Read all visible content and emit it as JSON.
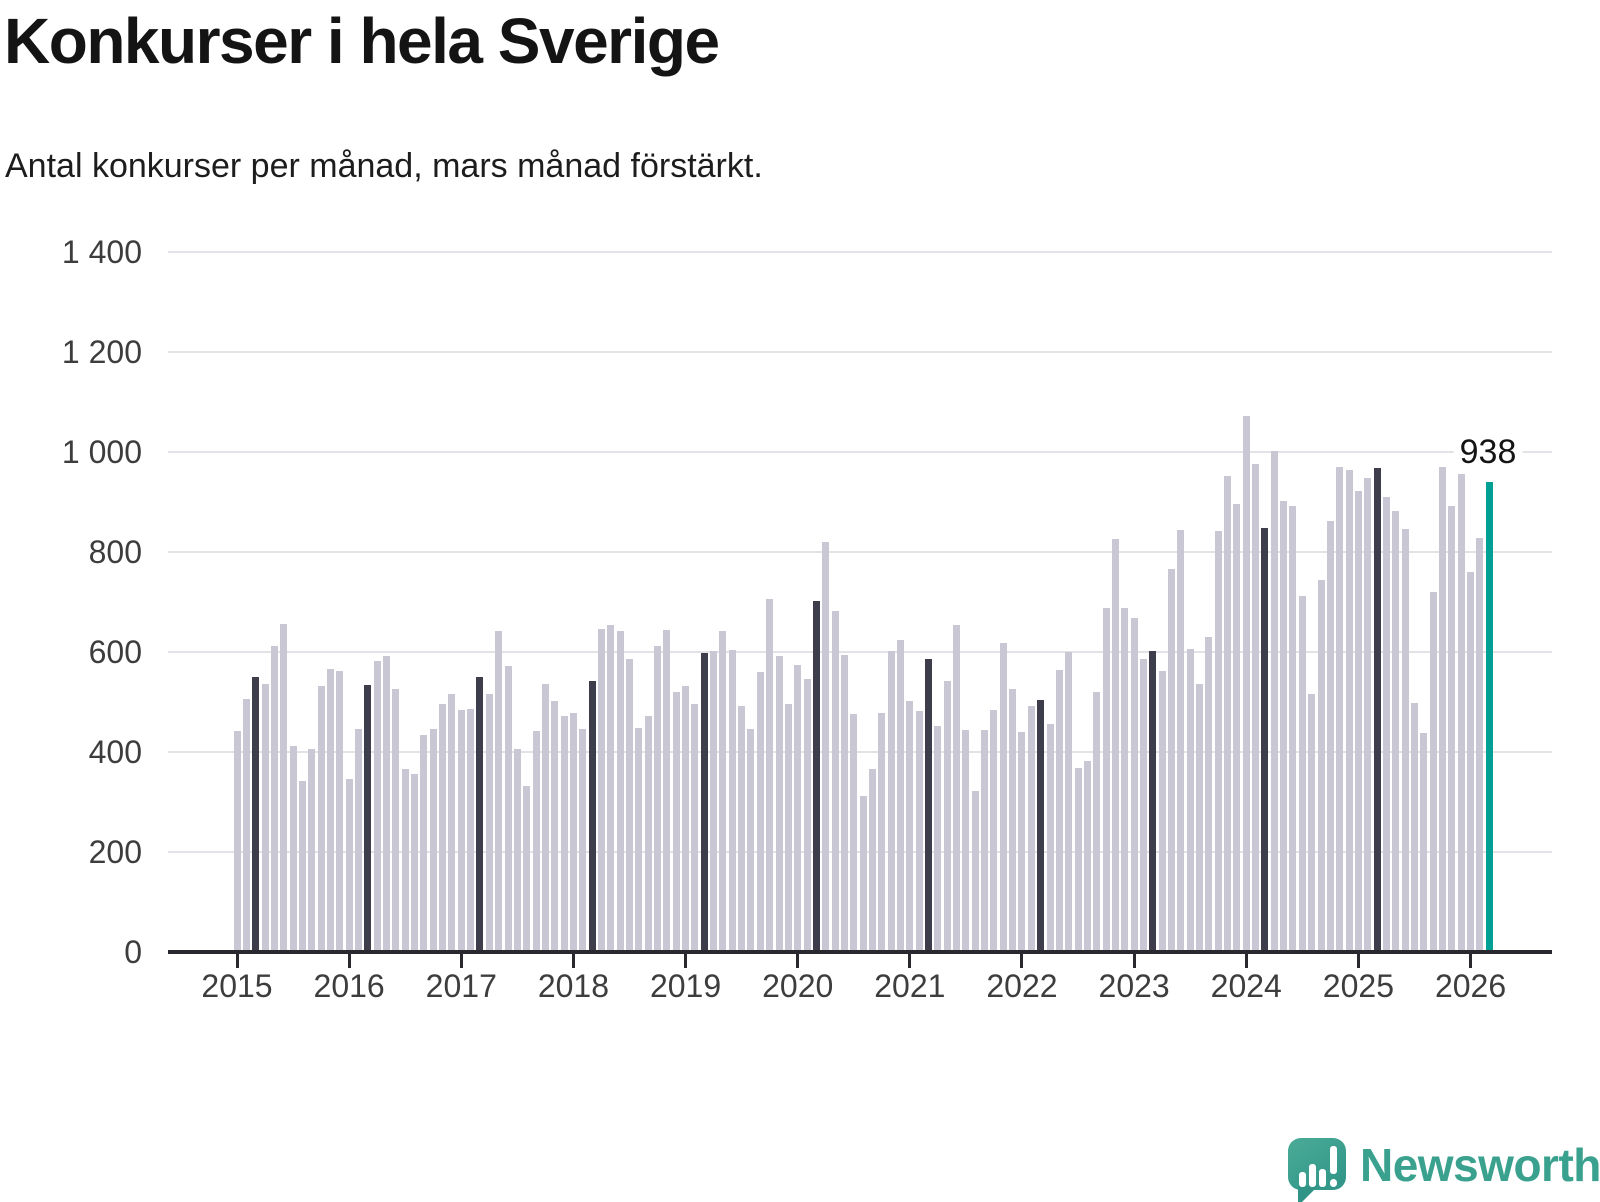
{
  "title": "Konkurser i hela Sverige",
  "subtitle": "Antal konkurser per månad, mars månad förstärkt.",
  "annotation": {
    "label": "938",
    "refers_to": "mars 2026"
  },
  "logo": {
    "text": "Newsworthy",
    "icon": "speech-bubble-bar-chart-icon"
  },
  "colors": {
    "bar_default": "#c9c7d3",
    "bar_march": "#3e3d4b",
    "bar_latest": "#00a094",
    "gridline": "#e3e2e7",
    "axis": "#28282e",
    "text": "#141414",
    "logo_teal": "#3aa18e"
  },
  "y_axis": {
    "ticks": [
      {
        "label": "1 400",
        "value": 1400
      },
      {
        "label": "1 200",
        "value": 1200
      },
      {
        "label": "1 000",
        "value": 1000
      },
      {
        "label": "800",
        "value": 800
      },
      {
        "label": "600",
        "value": 600
      },
      {
        "label": "400",
        "value": 400
      },
      {
        "label": "200",
        "value": 200
      },
      {
        "label": "0",
        "value": 0
      }
    ]
  },
  "chart_data": {
    "type": "bar",
    "title": "Konkurser i hela Sverige",
    "subtitle": "Antal konkurser per månad, mars månad förstärkt.",
    "ylabel": "Antal konkurser per månad",
    "ylim": [
      0,
      1400
    ],
    "grid": true,
    "legend": "none",
    "x_unit": "månad (januari 2015 – mars 2026)",
    "highlight_rule": "alla marsmånader mörka, senaste månaden (mars 2026) i turkos",
    "latest": {
      "month": "mars 2026",
      "value": 938
    },
    "series": [
      {
        "year": "2015",
        "values": [
          440,
          505,
          548,
          535,
          610,
          655,
          410,
          340,
          405,
          530,
          565,
          560
        ]
      },
      {
        "year": "2016",
        "values": [
          345,
          445,
          533,
          580,
          590,
          525,
          365,
          355,
          433,
          445,
          495,
          515
        ]
      },
      {
        "year": "2017",
        "values": [
          483,
          485,
          549,
          515,
          640,
          570,
          405,
          330,
          440,
          535,
          500,
          470
        ]
      },
      {
        "year": "2018",
        "values": [
          477,
          445,
          541,
          645,
          652,
          640,
          585,
          447,
          470,
          610,
          643,
          518
        ]
      },
      {
        "year": "2019",
        "values": [
          530,
          495,
          596,
          600,
          640,
          602,
          490,
          445,
          558,
          705,
          590,
          495
        ]
      },
      {
        "year": "2020",
        "values": [
          573,
          545,
          700,
          819,
          681,
          593,
          474,
          310,
          365,
          477,
          600,
          623
        ]
      },
      {
        "year": "2021",
        "values": [
          500,
          480,
          584,
          451,
          541,
          653,
          442,
          320,
          442,
          482,
          617,
          525
        ]
      },
      {
        "year": "2022",
        "values": [
          438,
          490,
          503,
          454,
          563,
          598,
          367,
          380,
          518,
          687,
          824,
          686
        ]
      },
      {
        "year": "2023",
        "values": [
          666,
          584,
          600,
          560,
          764,
          843,
          605,
          534,
          629,
          840,
          951,
          895
        ]
      },
      {
        "year": "2024",
        "values": [
          1071,
          975,
          847,
          1000,
          900,
          891,
          710,
          515,
          743,
          861,
          968,
          962
        ]
      },
      {
        "year": "2025",
        "values": [
          920,
          947,
          967,
          908,
          881,
          844,
          496,
          436,
          719,
          969,
          891,
          954
        ]
      },
      {
        "year": "2026",
        "values": [
          758,
          827,
          938
        ]
      }
    ]
  }
}
